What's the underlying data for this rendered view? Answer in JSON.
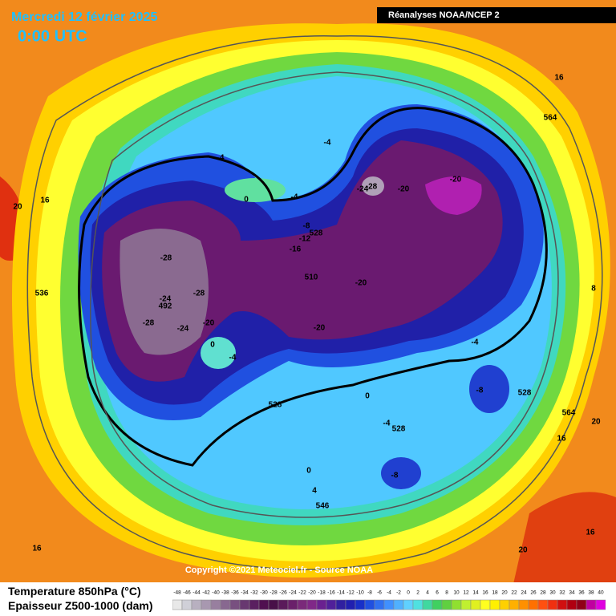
{
  "header": {
    "date": "Mercredi 12 février 2025",
    "time": "0:00 UTC",
    "source": "Réanalyses NOAA/NCEP 2"
  },
  "map": {
    "copyright": "Copyright ©2021 Meteociel.fr - Source NOAA",
    "labels": [
      "16",
      "564",
      "-4",
      "-4",
      "0",
      "-4",
      "-24",
      "-28",
      "-20",
      "-20",
      "-8",
      "528",
      "-12",
      "-16",
      "16",
      "20",
      "-28",
      "510",
      "-20",
      "536",
      "-24",
      "492",
      "-28",
      "8",
      "-28",
      "-24",
      "-20",
      "-20",
      "0",
      "-4",
      "-4",
      "-8",
      "0",
      "528",
      "528",
      "564",
      "20",
      "-4",
      "528",
      "16",
      "0",
      "4",
      "-8",
      "546",
      "16",
      "16",
      "20"
    ]
  },
  "legend": {
    "line1": "Temperature 850hPa (°C)",
    "line2": "Epaisseur Z500-1000 (dam)",
    "scale_labels": [
      -48,
      -46,
      -44,
      -42,
      -40,
      -38,
      -36,
      -34,
      -32,
      -30,
      -28,
      -26,
      -24,
      -22,
      -20,
      -18,
      -16,
      -14,
      -12,
      -10,
      -8,
      -6,
      -4,
      -2,
      0,
      2,
      4,
      6,
      8,
      10,
      12,
      14,
      16,
      18,
      20,
      22,
      24,
      26,
      28,
      30,
      32,
      34,
      36,
      38,
      40
    ],
    "scale_colors": [
      "#e8e8e8",
      "#d0d0d8",
      "#b8b0c0",
      "#a898b0",
      "#987f9f",
      "#886890",
      "#785080",
      "#683870",
      "#5a2060",
      "#501050",
      "#481048",
      "#5a1a5a",
      "#6a206a",
      "#7a2a7a",
      "#802888",
      "#6a2090",
      "#50209a",
      "#3020a0",
      "#2020b0",
      "#1830c8",
      "#2050e0",
      "#3070f0",
      "#4090ff",
      "#50b0ff",
      "#60d0ff",
      "#50e0e0",
      "#40d8a0",
      "#40d060",
      "#60d040",
      "#90e030",
      "#c0f030",
      "#e0f020",
      "#ffff20",
      "#fff000",
      "#ffd000",
      "#ffb000",
      "#ff9000",
      "#ff7000",
      "#ff5010",
      "#f03010",
      "#d01010",
      "#b00010",
      "#900018",
      "#c000a0",
      "#e000e0"
    ]
  }
}
